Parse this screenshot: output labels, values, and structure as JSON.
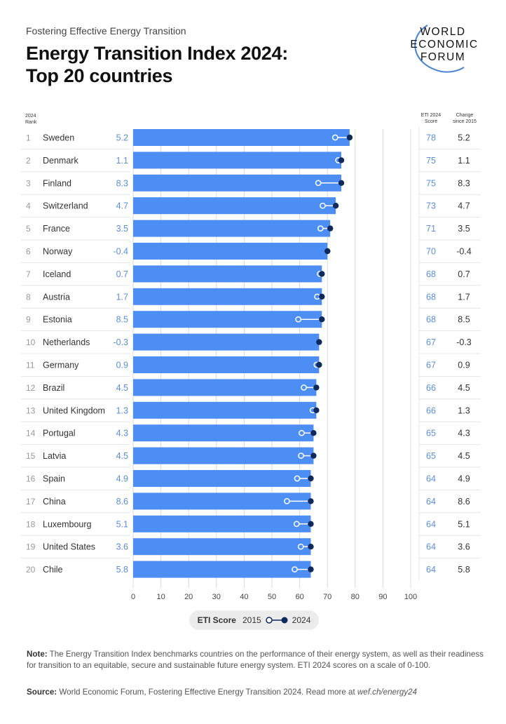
{
  "kicker": "Fostering Effective Energy Transition",
  "title_line1": "Energy Transition Index 2024:",
  "title_line2": "Top 20 countries",
  "logo_text": [
    "WORLD",
    "ECONOMIC",
    "FORUM"
  ],
  "headers": {
    "rank": [
      "2024",
      "Rank"
    ],
    "score": [
      "ETI 2024",
      "Score"
    ],
    "change": [
      "Change",
      "since 2015"
    ]
  },
  "legend": {
    "label": "ETI Score",
    "from": "2015",
    "to": "2024"
  },
  "note_label": "Note:",
  "note_text": "The Energy Transition Index benchmarks countries on the performance of their energy system, as well as their readiness for transition to an equitable, secure and sustainable future energy system. ETI 2024 scores on a scale of 0-100.",
  "source_label": "Source:",
  "source_text": "World Economic Forum, Fostering Effective Energy Transition 2024. Read more at ",
  "source_link": "wef.ch/energy24",
  "colors": {
    "bar": "#4d8ef5",
    "dot_2024": "#0e2a5c",
    "dot_2015": "#ffffff",
    "blue_text": "#5a8fd8",
    "grid": "#d8d8d8"
  },
  "chart_data": {
    "type": "bar",
    "orientation": "horizontal",
    "xlim": [
      0,
      100
    ],
    "xticks": [
      0,
      10,
      20,
      30,
      40,
      50,
      60,
      70,
      80,
      90,
      100
    ],
    "grid": true,
    "series": [
      {
        "name": "2024"
      },
      {
        "name": "2015"
      }
    ],
    "rows": [
      {
        "rank": 1,
        "country": "Sweden",
        "score": 78,
        "change": "5.2"
      },
      {
        "rank": 2,
        "country": "Denmark",
        "score": 75,
        "change": "1.1"
      },
      {
        "rank": 3,
        "country": "Finland",
        "score": 75,
        "change": "8.3"
      },
      {
        "rank": 4,
        "country": "Switzerland",
        "score": 73,
        "change": "4.7"
      },
      {
        "rank": 5,
        "country": "France",
        "score": 71,
        "change": "3.5"
      },
      {
        "rank": 6,
        "country": "Norway",
        "score": 70,
        "change": "-0.4"
      },
      {
        "rank": 7,
        "country": "Iceland",
        "score": 68,
        "change": "0.7"
      },
      {
        "rank": 8,
        "country": "Austria",
        "score": 68,
        "change": "1.7"
      },
      {
        "rank": 9,
        "country": "Estonia",
        "score": 68,
        "change": "8.5"
      },
      {
        "rank": 10,
        "country": "Netherlands",
        "score": 67,
        "change": "-0.3"
      },
      {
        "rank": 11,
        "country": "Germany",
        "score": 67,
        "change": "0.9"
      },
      {
        "rank": 12,
        "country": "Brazil",
        "score": 66,
        "change": "4.5"
      },
      {
        "rank": 13,
        "country": "United Kingdom",
        "score": 66,
        "change": "1.3"
      },
      {
        "rank": 14,
        "country": "Portugal",
        "score": 65,
        "change": "4.3"
      },
      {
        "rank": 15,
        "country": "Latvia",
        "score": 65,
        "change": "4.5"
      },
      {
        "rank": 16,
        "country": "Spain",
        "score": 64,
        "change": "4.9"
      },
      {
        "rank": 17,
        "country": "China",
        "score": 64,
        "change": "8.6"
      },
      {
        "rank": 18,
        "country": "Luxembourg",
        "score": 64,
        "change": "5.1"
      },
      {
        "rank": 19,
        "country": "United States",
        "score": 64,
        "change": "3.6"
      },
      {
        "rank": 20,
        "country": "Chile",
        "score": 64,
        "change": "5.8"
      }
    ]
  }
}
